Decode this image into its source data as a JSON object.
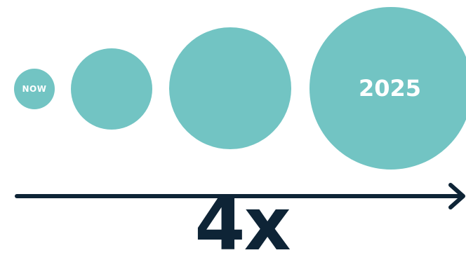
{
  "colors": {
    "circle_fill": "#72c4c3",
    "dark": "#0e2436",
    "circle_text": "#ffffff"
  },
  "circles": [
    {
      "label": "NOW"
    },
    {
      "label": ""
    },
    {
      "label": ""
    },
    {
      "label": "2025"
    }
  ],
  "multiplier": "4x"
}
